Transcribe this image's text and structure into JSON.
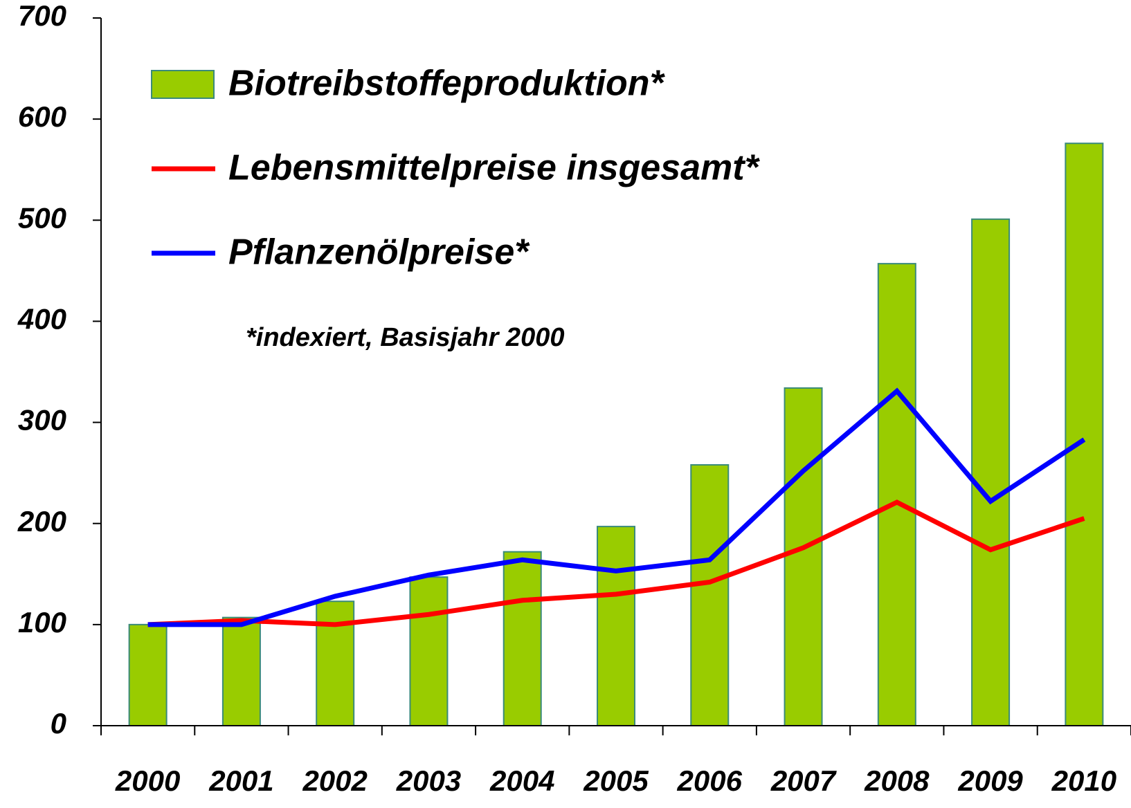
{
  "chart_data": {
    "type": "bar_line",
    "annotation": "*indexiert, Basisjahr 2000",
    "categories": [
      "2000",
      "2001",
      "2002",
      "2003",
      "2004",
      "2005",
      "2006",
      "2007",
      "2008",
      "2009",
      "2010"
    ],
    "series": [
      {
        "name": "Biotreibstoffeproduktion*",
        "type": "bar",
        "color": "#99cc00",
        "values": [
          100,
          107,
          123,
          147,
          172,
          197,
          258,
          334,
          457,
          501,
          576
        ]
      },
      {
        "name": "Lebensmittelpreise insgesamt*",
        "type": "line",
        "color": "#ff0000",
        "values": [
          100,
          104,
          100,
          110,
          124,
          130,
          142,
          176,
          221,
          174,
          205
        ]
      },
      {
        "name": "Pflanzenölpreise*",
        "type": "line",
        "color": "#0000ff",
        "values": [
          100,
          100,
          128,
          149,
          164,
          153,
          164,
          252,
          331,
          222,
          283
        ]
      }
    ],
    "ylim": [
      0,
      700
    ],
    "yticks": [
      0,
      100,
      200,
      300,
      400,
      500,
      600,
      700
    ],
    "grid": false,
    "legend": "upper left"
  }
}
